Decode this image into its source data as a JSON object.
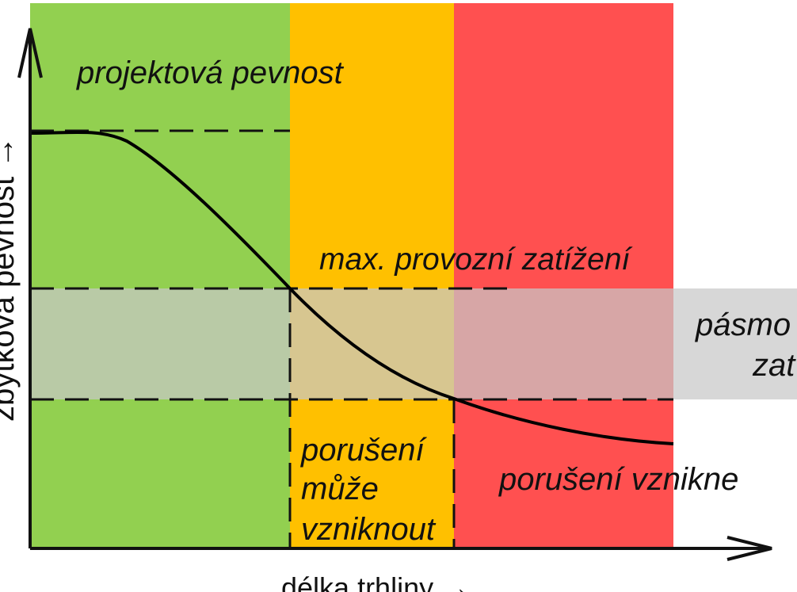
{
  "diagram": {
    "regions": [
      {
        "id": "green",
        "color": "#92d050"
      },
      {
        "id": "orange",
        "color": "#ffc000"
      },
      {
        "id": "red",
        "color": "#ff5050"
      }
    ],
    "band_color": "#c8c8c8",
    "axis_color": "#111111",
    "curve_color": "#000000"
  },
  "labels": {
    "design_strength": "projektová pevnost",
    "max_load": "max. provozní zatížení",
    "load_band_line1": "pásmo",
    "load_band_line2": "zat",
    "may_fail_line1": "porušení",
    "may_fail_line2": "může",
    "may_fail_line3": "vzniknout",
    "will_fail": "porušení vznikne",
    "x_axis": "délka trhliny  →",
    "y_axis": "zbytková pevnost →"
  }
}
